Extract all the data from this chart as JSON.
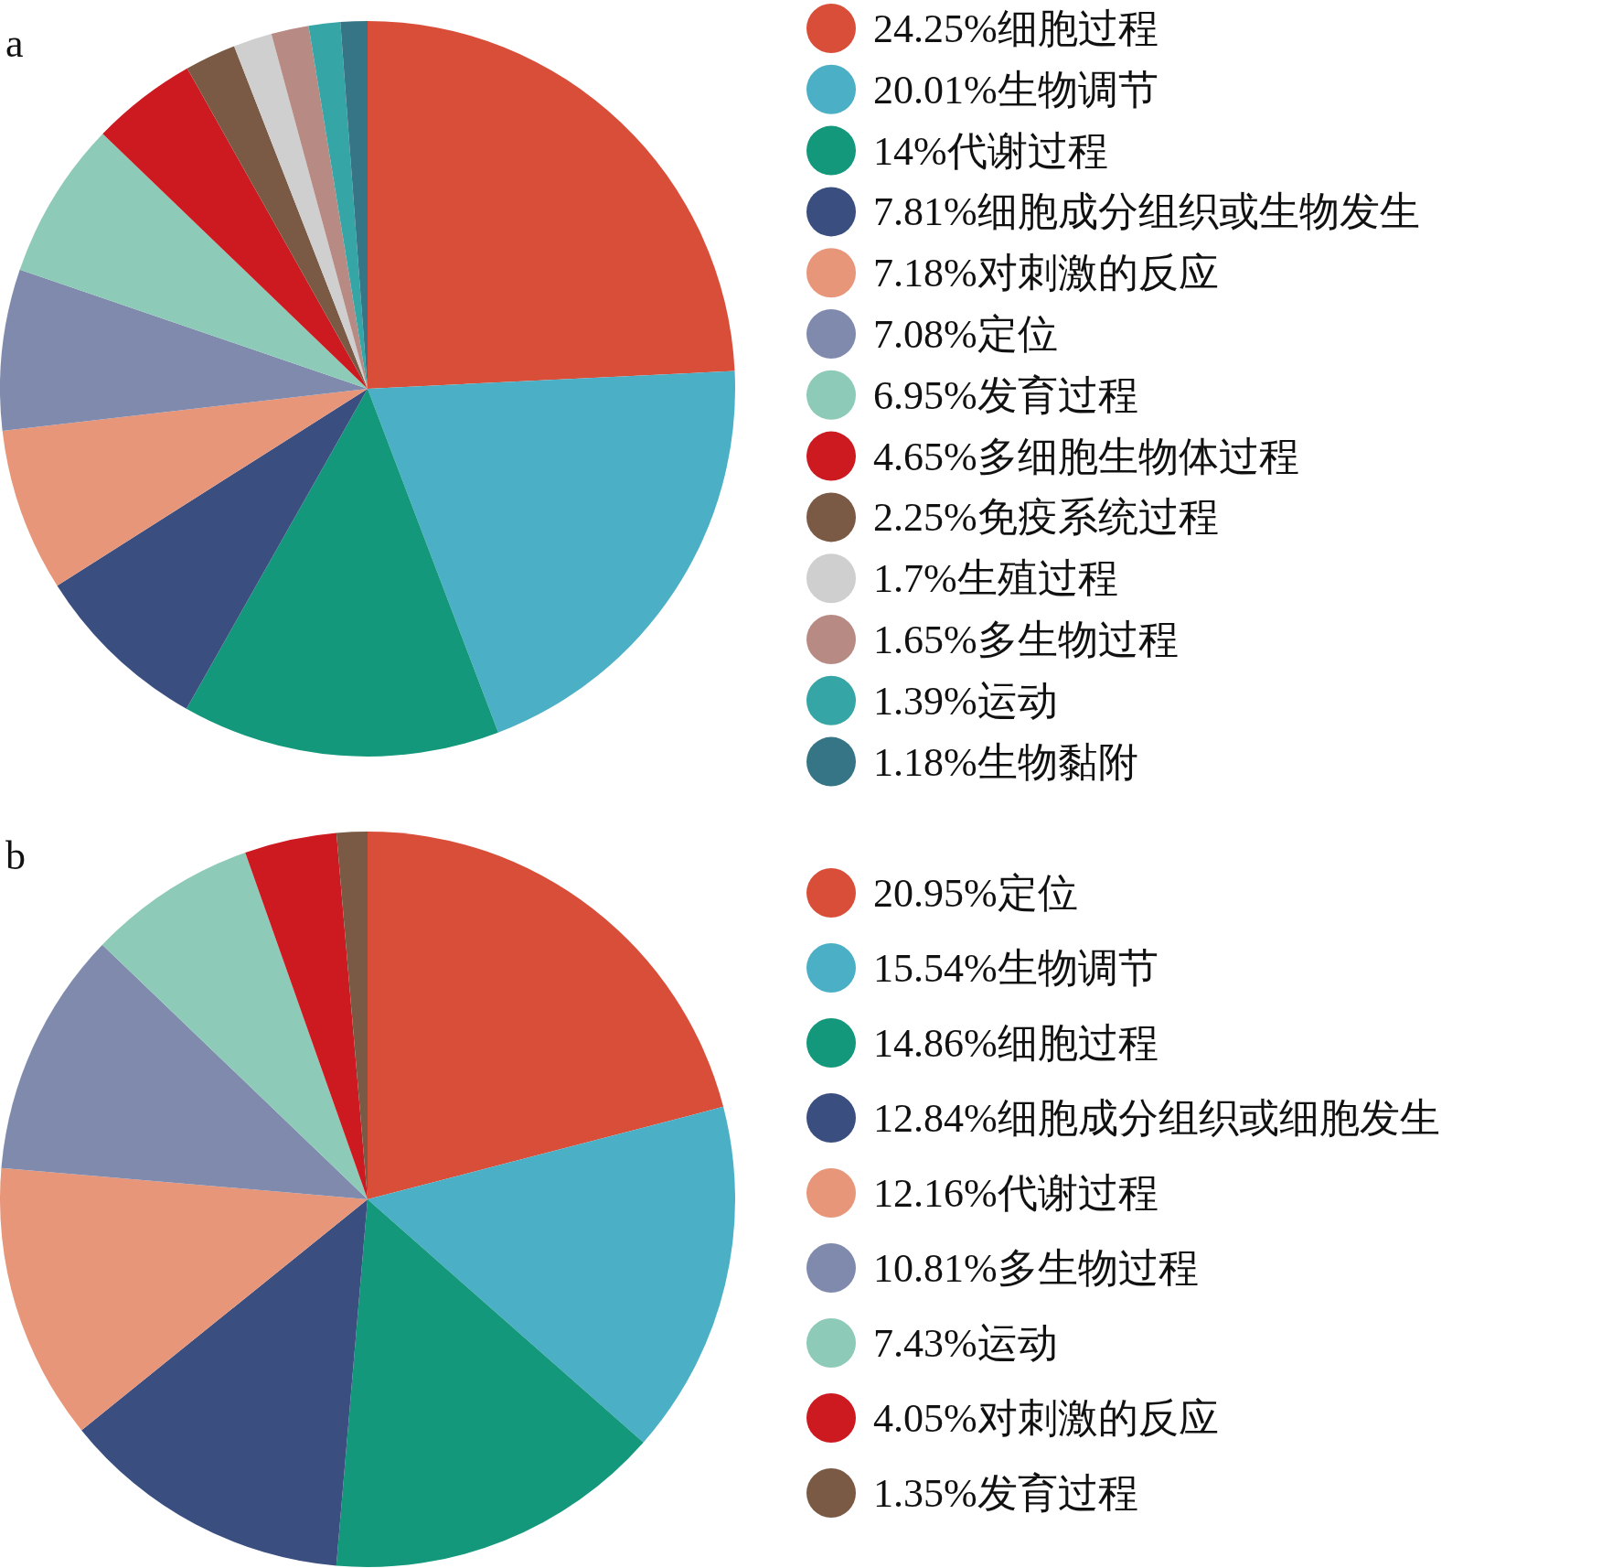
{
  "chart_data": [
    {
      "type": "pie",
      "title": "a",
      "legend": "right",
      "categories": [
        "24.25%细胞过程",
        "20.01%生物调节",
        "14%代谢过程",
        "7.81%细胞成分组织或生物发生",
        "7.18%对刺激的反应",
        "7.08%定位",
        "6.95%发育过程",
        "4.65%多细胞生物体过程",
        "2.25%免疫系统过程",
        "1.7%生殖过程",
        "1.65%多生物过程",
        "1.39%运动",
        "1.18%生物黏附"
      ],
      "values": [
        24.25,
        20.01,
        14,
        7.81,
        7.18,
        7.08,
        6.95,
        4.65,
        2.25,
        1.7,
        1.65,
        1.39,
        1.18
      ],
      "colors": [
        "#d94e38",
        "#4bafc6",
        "#13987c",
        "#3a4f80",
        "#e8967a",
        "#7f8aad",
        "#8ecab8",
        "#cc1a20",
        "#7a5a44",
        "#cfcfcf",
        "#b88a84",
        "#36a5a5",
        "#357585"
      ]
    },
    {
      "type": "pie",
      "title": "b",
      "legend": "right",
      "categories": [
        "20.95%定位",
        "15.54%生物调节",
        "14.86%细胞过程",
        "12.84%细胞成分组织或细胞发生",
        "12.16%代谢过程",
        "10.81%多生物过程",
        "7.43%运动",
        "4.05%对刺激的反应",
        "1.35%发育过程"
      ],
      "values": [
        20.95,
        15.54,
        14.86,
        12.84,
        12.16,
        10.81,
        7.43,
        4.05,
        1.35
      ],
      "colors": [
        "#d94e38",
        "#4bafc6",
        "#13987c",
        "#3a4f80",
        "#e8967a",
        "#7f8aad",
        "#8ecab8",
        "#cc1a20",
        "#7a5a44"
      ]
    }
  ]
}
